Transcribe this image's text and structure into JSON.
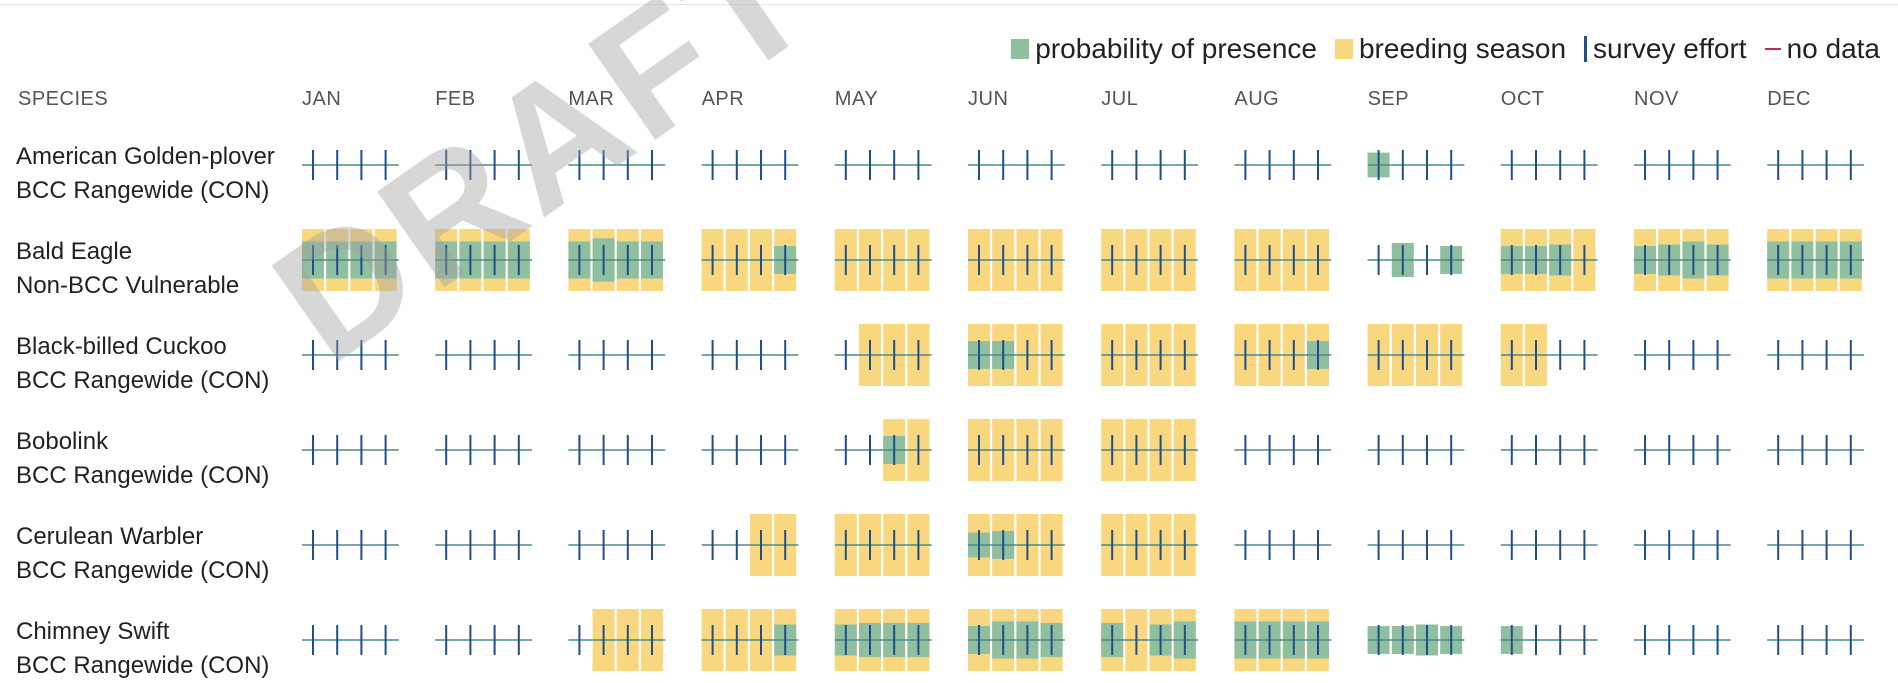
{
  "legend": {
    "presence": "probability of presence",
    "breeding": "breeding season",
    "effort": "survey effort",
    "nodata": "no data"
  },
  "colors": {
    "presence": "#8fbf9f",
    "breeding": "#f9d77e",
    "effort": "#1f4e8c",
    "effort_line": "#4a8a8a",
    "nodata": "#c8294a"
  },
  "header": {
    "species": "SPECIES",
    "months": [
      "JAN",
      "FEB",
      "MAR",
      "APR",
      "MAY",
      "JUN",
      "JUL",
      "AUG",
      "SEP",
      "OCT",
      "NOV",
      "DEC"
    ]
  },
  "watermark": "DRAFT FOR CONSULTATION",
  "species": [
    {
      "name": "American Golden-plover",
      "status": "BCC Rangewide (CON)",
      "breeding": [
        0,
        0,
        0,
        0,
        0,
        0,
        0,
        0,
        0,
        0,
        0,
        0,
        0,
        0,
        0,
        0,
        0,
        0,
        0,
        0,
        0,
        0,
        0,
        0,
        0,
        0,
        0,
        0,
        0,
        0,
        0,
        0,
        0,
        0,
        0,
        0,
        0,
        0,
        0,
        0,
        0,
        0,
        0,
        0,
        0,
        0,
        0,
        0
      ],
      "presence": [
        0,
        0,
        0,
        0,
        0,
        0,
        0,
        0,
        0,
        0,
        0,
        0,
        0,
        0,
        0,
        0,
        0,
        0,
        0,
        0,
        0,
        0,
        0,
        0,
        0,
        0,
        0,
        0,
        0,
        0,
        0,
        0,
        0.4,
        0,
        0,
        0,
        0,
        0,
        0,
        0,
        0,
        0,
        0,
        0,
        0,
        0,
        0,
        0
      ]
    },
    {
      "name": "Bald Eagle",
      "status": "Non-BCC Vulnerable",
      "breeding": [
        1,
        1,
        1,
        1,
        1,
        1,
        1,
        1,
        1,
        1,
        1,
        1,
        1,
        1,
        1,
        1,
        1,
        1,
        1,
        1,
        1,
        1,
        1,
        1,
        1,
        1,
        1,
        1,
        1,
        1,
        1,
        1,
        0,
        0,
        0,
        0,
        1,
        1,
        1,
        1,
        1,
        1,
        1,
        1,
        1,
        1,
        1,
        1
      ],
      "presence": [
        0.6,
        0.6,
        0.6,
        0.6,
        0.6,
        0.6,
        0.6,
        0.6,
        0.6,
        0.7,
        0.6,
        0.6,
        0,
        0,
        0,
        0.45,
        0,
        0,
        0,
        0,
        0,
        0,
        0,
        0,
        0,
        0,
        0,
        0,
        0,
        0,
        0,
        0,
        0,
        0.55,
        0,
        0.45,
        0.45,
        0.45,
        0.5,
        0,
        0.45,
        0.5,
        0.6,
        0.5,
        0.6,
        0.6,
        0.6,
        0.6
      ]
    },
    {
      "name": "Black-billed Cuckoo",
      "status": "BCC Rangewide (CON)",
      "breeding": [
        0,
        0,
        0,
        0,
        0,
        0,
        0,
        0,
        0,
        0,
        0,
        0,
        0,
        0,
        0,
        0,
        0,
        1,
        1,
        1,
        1,
        1,
        1,
        1,
        1,
        1,
        1,
        1,
        1,
        1,
        1,
        1,
        1,
        1,
        1,
        1,
        1,
        1,
        0,
        0,
        0,
        0,
        0,
        0,
        0,
        0,
        0,
        0
      ],
      "presence": [
        0,
        0,
        0,
        0,
        0,
        0,
        0,
        0,
        0,
        0,
        0,
        0,
        0,
        0,
        0,
        0,
        0,
        0,
        0,
        0,
        0.45,
        0.45,
        0,
        0,
        0,
        0,
        0,
        0,
        0,
        0,
        0,
        0.45,
        0,
        0,
        0,
        0,
        0,
        0,
        0,
        0,
        0,
        0,
        0,
        0,
        0,
        0,
        0,
        0
      ]
    },
    {
      "name": "Bobolink",
      "status": "BCC Rangewide (CON)",
      "breeding": [
        0,
        0,
        0,
        0,
        0,
        0,
        0,
        0,
        0,
        0,
        0,
        0,
        0,
        0,
        0,
        0,
        0,
        0,
        1,
        1,
        1,
        1,
        1,
        1,
        1,
        1,
        1,
        1,
        0,
        0,
        0,
        0,
        0,
        0,
        0,
        0,
        0,
        0,
        0,
        0,
        0,
        0,
        0,
        0,
        0,
        0,
        0,
        0
      ],
      "presence": [
        0,
        0,
        0,
        0,
        0,
        0,
        0,
        0,
        0,
        0,
        0,
        0,
        0,
        0,
        0,
        0,
        0,
        0,
        0.45,
        0,
        0,
        0,
        0,
        0,
        0,
        0,
        0,
        0,
        0,
        0,
        0,
        0,
        0,
        0,
        0,
        0,
        0,
        0,
        0,
        0,
        0,
        0,
        0,
        0,
        0,
        0,
        0,
        0
      ]
    },
    {
      "name": "Cerulean Warbler",
      "status": "BCC Rangewide (CON)",
      "breeding": [
        0,
        0,
        0,
        0,
        0,
        0,
        0,
        0,
        0,
        0,
        0,
        0,
        0,
        0,
        1,
        1,
        1,
        1,
        1,
        1,
        1,
        1,
        1,
        1,
        1,
        1,
        1,
        1,
        0,
        0,
        0,
        0,
        0,
        0,
        0,
        0,
        0,
        0,
        0,
        0,
        0,
        0,
        0,
        0,
        0,
        0,
        0,
        0
      ],
      "presence": [
        0,
        0,
        0,
        0,
        0,
        0,
        0,
        0,
        0,
        0,
        0,
        0,
        0,
        0,
        0,
        0,
        0,
        0,
        0,
        0,
        0.4,
        0.45,
        0,
        0,
        0,
        0,
        0,
        0,
        0,
        0,
        0,
        0,
        0,
        0,
        0,
        0,
        0,
        0,
        0,
        0,
        0,
        0,
        0,
        0,
        0,
        0,
        0,
        0
      ]
    },
    {
      "name": "Chimney Swift",
      "status": "BCC Rangewide (CON)",
      "breeding": [
        0,
        0,
        0,
        0,
        0,
        0,
        0,
        0,
        0,
        1,
        1,
        1,
        1,
        1,
        1,
        1,
        1,
        1,
        1,
        1,
        1,
        1,
        1,
        1,
        1,
        1,
        1,
        1,
        1,
        1,
        1,
        1,
        0,
        0,
        0,
        0,
        0,
        0,
        0,
        0,
        0,
        0,
        0,
        0,
        0,
        0,
        0,
        0
      ],
      "presence": [
        0,
        0,
        0,
        0,
        0,
        0,
        0,
        0,
        0,
        0,
        0,
        0,
        0,
        0,
        0,
        0.5,
        0.5,
        0.55,
        0.55,
        0.55,
        0.45,
        0.6,
        0.6,
        0.55,
        0.55,
        0,
        0.5,
        0.6,
        0.6,
        0.6,
        0.6,
        0.6,
        0.45,
        0.45,
        0.5,
        0.45,
        0.45,
        0,
        0,
        0,
        0,
        0,
        0,
        0,
        0,
        0,
        0,
        0
      ]
    }
  ]
}
